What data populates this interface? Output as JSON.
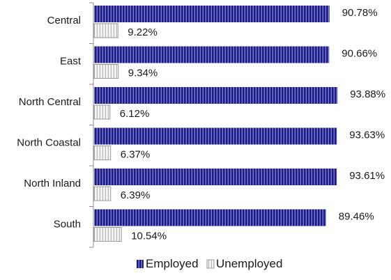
{
  "chart_data": {
    "type": "bar",
    "orientation": "horizontal",
    "categories": [
      "Central",
      "East",
      "North Central",
      "North Coastal",
      "North Inland",
      "South"
    ],
    "series": [
      {
        "name": "Employed",
        "values": [
          90.78,
          90.66,
          93.88,
          93.63,
          93.61,
          89.46
        ],
        "labels": [
          "90.78%",
          "90.66%",
          "93.88%",
          "93.63%",
          "93.61%",
          "89.46%"
        ],
        "color": "#1a1a8a"
      },
      {
        "name": "Unemployed",
        "values": [
          9.22,
          9.34,
          6.12,
          6.37,
          6.39,
          10.54
        ],
        "labels": [
          "9.22%",
          "9.34%",
          "6.12%",
          "6.37%",
          "6.39%",
          "10.54%"
        ],
        "color": "#f2f2f2"
      }
    ],
    "xlim": [
      0,
      100
    ],
    "grid": false,
    "legend": "bottom"
  }
}
